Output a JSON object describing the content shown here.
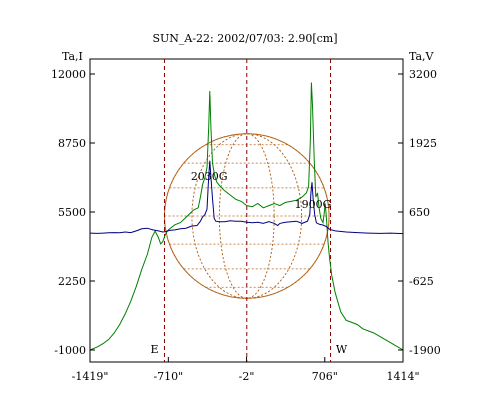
{
  "chart_data": {
    "type": "line",
    "title": "SUN_A-22: 2002/07/03: 2.90[cm]",
    "left_axis_label": "Ta,I",
    "right_axis_label": "Ta,V",
    "left_ylim": [
      -1000,
      12000
    ],
    "right_ylim": [
      -1900,
      3200
    ],
    "xlim": [
      -1419,
      1414
    ],
    "left_ticks": [
      12000,
      8750,
      5500,
      2250,
      -1000
    ],
    "right_ticks": [
      3200,
      1925,
      650,
      -625,
      -1900
    ],
    "x_tick_labels": [
      "-1419\"",
      "-710\"",
      "-2\"",
      "706\"",
      "1414\""
    ],
    "x_ticks": [
      -1419,
      -710,
      -2,
      706,
      1414
    ],
    "limb_labels": [
      "E",
      "W"
    ],
    "limb_positions": [
      -745,
      758
    ],
    "solar_radius": 745,
    "grid": false,
    "colors": {
      "intensity": "#008000",
      "polarization": "#000080",
      "disk": "#b5651d",
      "frame": "#000000"
    },
    "annotations": [
      {
        "text": "2030G",
        "x": -340,
        "y_left": 7000
      },
      {
        "text": "1900G",
        "x": 600,
        "y_left": 5700
      }
    ],
    "series": [
      {
        "axis": "left",
        "points": [
          [
            -1419,
            -1000
          ],
          [
            -1350,
            -850
          ],
          [
            -1300,
            -700
          ],
          [
            -1250,
            -500
          ],
          [
            -1200,
            -200
          ],
          [
            -1150,
            200
          ],
          [
            -1100,
            700
          ],
          [
            -1050,
            1300
          ],
          [
            -1000,
            2000
          ],
          [
            -950,
            2800
          ],
          [
            -900,
            3500
          ],
          [
            -860,
            4300
          ],
          [
            -830,
            4600
          ],
          [
            -800,
            4300
          ],
          [
            -780,
            4000
          ],
          [
            -760,
            4100
          ],
          [
            -740,
            4400
          ],
          [
            -720,
            4600
          ],
          [
            -700,
            4700
          ],
          [
            -650,
            4900
          ],
          [
            -600,
            5000
          ],
          [
            -560,
            5200
          ],
          [
            -520,
            5400
          ],
          [
            -480,
            5600
          ],
          [
            -440,
            5700
          ],
          [
            -420,
            6200
          ],
          [
            -400,
            6800
          ],
          [
            -380,
            7100
          ],
          [
            -360,
            7600
          ],
          [
            -345,
            9500
          ],
          [
            -335,
            11200
          ],
          [
            -325,
            9500
          ],
          [
            -310,
            7800
          ],
          [
            -290,
            7200
          ],
          [
            -270,
            6900
          ],
          [
            -240,
            6700
          ],
          [
            -200,
            6500
          ],
          [
            -150,
            6300
          ],
          [
            -100,
            6100
          ],
          [
            -50,
            6000
          ],
          [
            0,
            5800
          ],
          [
            50,
            5750
          ],
          [
            100,
            5900
          ],
          [
            150,
            5700
          ],
          [
            200,
            5800
          ],
          [
            250,
            5900
          ],
          [
            300,
            5800
          ],
          [
            350,
            5950
          ],
          [
            400,
            6000
          ],
          [
            450,
            6050
          ],
          [
            500,
            6200
          ],
          [
            540,
            6400
          ],
          [
            560,
            6700
          ],
          [
            575,
            8800
          ],
          [
            585,
            11600
          ],
          [
            595,
            10500
          ],
          [
            610,
            8000
          ],
          [
            625,
            6200
          ],
          [
            640,
            6400
          ],
          [
            655,
            5700
          ],
          [
            670,
            5200
          ],
          [
            690,
            5000
          ],
          [
            700,
            5400
          ],
          [
            710,
            5900
          ],
          [
            720,
            5300
          ],
          [
            735,
            4100
          ],
          [
            750,
            3300
          ],
          [
            770,
            2500
          ],
          [
            800,
            1700
          ],
          [
            850,
            800
          ],
          [
            900,
            400
          ],
          [
            950,
            300
          ],
          [
            1000,
            200
          ],
          [
            1050,
            0
          ],
          [
            1100,
            -100
          ],
          [
            1150,
            -200
          ],
          [
            1200,
            -350
          ],
          [
            1250,
            -500
          ],
          [
            1300,
            -650
          ],
          [
            1350,
            -800
          ],
          [
            1414,
            -1000
          ]
        ]
      },
      {
        "axis": "right",
        "points": [
          [
            -1419,
            260
          ],
          [
            -1350,
            255
          ],
          [
            -1300,
            260
          ],
          [
            -1250,
            265
          ],
          [
            -1200,
            270
          ],
          [
            -1150,
            265
          ],
          [
            -1100,
            280
          ],
          [
            -1050,
            270
          ],
          [
            -1000,
            300
          ],
          [
            -950,
            340
          ],
          [
            -900,
            350
          ],
          [
            -850,
            320
          ],
          [
            -800,
            300
          ],
          [
            -760,
            280
          ],
          [
            -730,
            290
          ],
          [
            -700,
            310
          ],
          [
            -650,
            320
          ],
          [
            -600,
            340
          ],
          [
            -550,
            350
          ],
          [
            -500,
            390
          ],
          [
            -450,
            400
          ],
          [
            -420,
            480
          ],
          [
            -400,
            560
          ],
          [
            -380,
            600
          ],
          [
            -360,
            700
          ],
          [
            -345,
            1300
          ],
          [
            -335,
            1600
          ],
          [
            -325,
            1300
          ],
          [
            -310,
            900
          ],
          [
            -295,
            530
          ],
          [
            -280,
            480
          ],
          [
            -250,
            470
          ],
          [
            -200,
            470
          ],
          [
            -150,
            490
          ],
          [
            -100,
            480
          ],
          [
            -50,
            480
          ],
          [
            0,
            460
          ],
          [
            50,
            450
          ],
          [
            100,
            460
          ],
          [
            150,
            440
          ],
          [
            200,
            470
          ],
          [
            250,
            440
          ],
          [
            280,
            400
          ],
          [
            300,
            440
          ],
          [
            350,
            460
          ],
          [
            400,
            470
          ],
          [
            450,
            480
          ],
          [
            500,
            440
          ],
          [
            550,
            480
          ],
          [
            570,
            600
          ],
          [
            580,
            1000
          ],
          [
            590,
            1200
          ],
          [
            600,
            900
          ],
          [
            615,
            600
          ],
          [
            630,
            450
          ],
          [
            660,
            420
          ],
          [
            690,
            410
          ],
          [
            720,
            380
          ],
          [
            750,
            330
          ],
          [
            800,
            300
          ],
          [
            900,
            280
          ],
          [
            1000,
            270
          ],
          [
            1100,
            260
          ],
          [
            1200,
            255
          ],
          [
            1300,
            260
          ],
          [
            1414,
            250
          ]
        ]
      }
    ]
  }
}
